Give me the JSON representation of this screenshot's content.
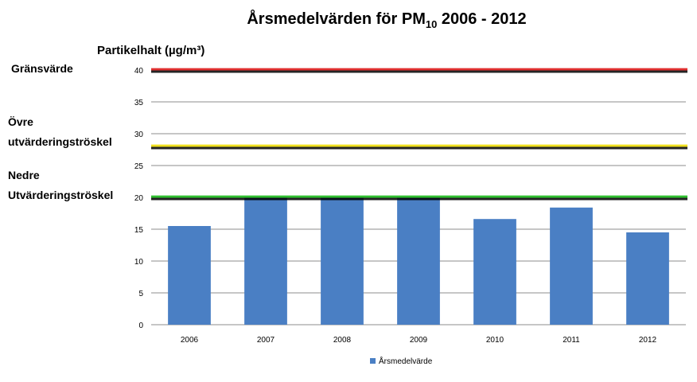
{
  "chart_data": {
    "type": "bar",
    "title": "Årsmedelvärden för PM",
    "title_subscript": "10",
    "title_suffix": " 2006 - 2012",
    "ylabel": "Partikelhalt (µg/m³)",
    "categories": [
      "2006",
      "2007",
      "2008",
      "2009",
      "2010",
      "2011",
      "2012"
    ],
    "series": [
      {
        "name": "Årsmedelvärde",
        "values": [
          15.5,
          20,
          20,
          20,
          16.6,
          18.4,
          14.5
        ],
        "color": "#4a7fc4"
      }
    ],
    "ylim": [
      0,
      40
    ],
    "yticks": [
      "0",
      "5",
      "10",
      "15",
      "20",
      "25",
      "30",
      "35",
      "40"
    ],
    "grid": true,
    "legend_position": "bottom",
    "reference_lines": [
      {
        "label": "Gränsvärde",
        "label_lines": [
          "Gränsvärde"
        ],
        "value": 40,
        "color": "#e03030"
      },
      {
        "label": "Övre utvärderingströskel",
        "label_lines": [
          "Övre",
          "utvärderingströskel"
        ],
        "value": 28,
        "color": "#f0e020"
      },
      {
        "label": "Nedre Utvärderingströskel",
        "label_lines": [
          "Nedre",
          "Utvärderingströskel"
        ],
        "value": 20,
        "color": "#30c030"
      }
    ]
  }
}
